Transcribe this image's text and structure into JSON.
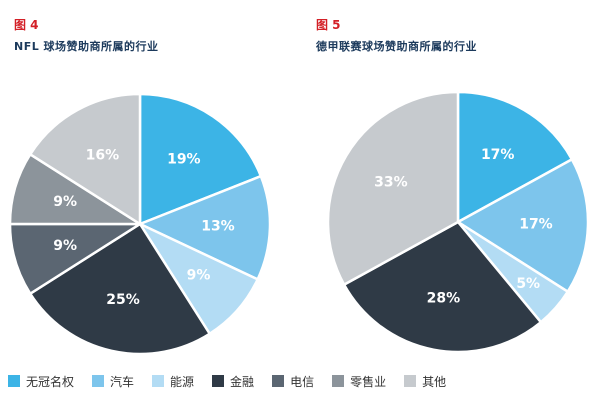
{
  "colors": {
    "label_red": "#d32027",
    "title_navy": "#1c3a5c",
    "slice_text": "#ffffff",
    "categories": {
      "无冠名权": "#3cb4e6",
      "汽车": "#7dc5ec",
      "能源": "#b3dcf4",
      "金融": "#2f3a46",
      "电信": "#5b6672",
      "零售业": "#8c949b",
      "其他": "#c6cace"
    }
  },
  "legend": [
    {
      "label": "无冠名权",
      "color": "#3cb4e6"
    },
    {
      "label": "汽车",
      "color": "#7dc5ec"
    },
    {
      "label": "能源",
      "color": "#b3dcf4"
    },
    {
      "label": "金融",
      "color": "#2f3a46"
    },
    {
      "label": "电信",
      "color": "#5b6672"
    },
    {
      "label": "零售业",
      "color": "#8c949b"
    },
    {
      "label": "其他",
      "color": "#c6cace"
    }
  ],
  "chart_data": [
    {
      "type": "pie",
      "figure_label": "图 4",
      "title": "NFL 球场赞助商所属的行业",
      "slices": [
        {
          "category": "无冠名权",
          "value": 19,
          "label": "19%"
        },
        {
          "category": "汽车",
          "value": 13,
          "label": "13%"
        },
        {
          "category": "能源",
          "value": 9,
          "label": "9%"
        },
        {
          "category": "金融",
          "value": 25,
          "label": "25%"
        },
        {
          "category": "电信",
          "value": 9,
          "label": "9%"
        },
        {
          "category": "零售业",
          "value": 9,
          "label": "9%"
        },
        {
          "category": "其他",
          "value": 16,
          "label": "16%"
        }
      ]
    },
    {
      "type": "pie",
      "figure_label": "图 5",
      "title": "德甲联赛球场赞助商所属的行业",
      "slices": [
        {
          "category": "无冠名权",
          "value": 17,
          "label": "17%"
        },
        {
          "category": "汽车",
          "value": 17,
          "label": "17%"
        },
        {
          "category": "能源",
          "value": 5,
          "label": "5%"
        },
        {
          "category": "金融",
          "value": 28,
          "label": "28%"
        },
        {
          "category": "其他",
          "value": 33,
          "label": "33%"
        }
      ]
    }
  ]
}
